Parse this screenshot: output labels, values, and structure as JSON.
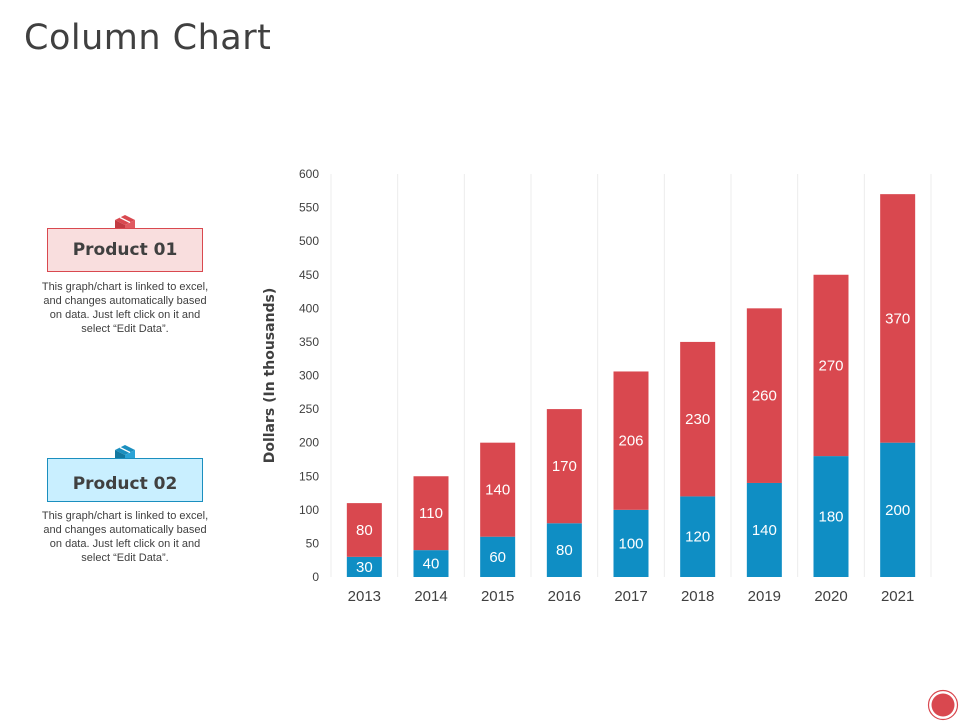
{
  "slide": {
    "title": "Column Chart"
  },
  "products": [
    {
      "label": "Product 01",
      "description_lines": [
        "This graph/chart is linked to excel,",
        "and changes automatically based",
        "on data. Just left click on it and",
        "select “Edit Data”."
      ],
      "color": "#d9484f",
      "icon": "box-icon"
    },
    {
      "label": "Product 02",
      "description_lines": [
        "This graph/chart is linked to excel,",
        "and changes automatically based",
        "on data. Just left click on it and",
        "select “Edit Data”."
      ],
      "color": "#1a8fbf",
      "icon": "box-icon"
    }
  ],
  "chart_data": {
    "type": "bar",
    "stacked": true,
    "title": "",
    "xlabel": "",
    "ylabel": "Dollars (In thousands)",
    "ylim": [
      0,
      600
    ],
    "yticks": [
      0,
      50,
      100,
      150,
      200,
      250,
      300,
      350,
      400,
      450,
      500,
      550,
      600
    ],
    "categories": [
      "2013",
      "2014",
      "2015",
      "2016",
      "2017",
      "2018",
      "2019",
      "2020",
      "2021"
    ],
    "series": [
      {
        "name": "Product 02",
        "color": "#0f8ec4",
        "values": [
          30,
          40,
          60,
          80,
          100,
          120,
          140,
          180,
          200
        ]
      },
      {
        "name": "Product 01",
        "color": "#d9484f",
        "values": [
          80,
          110,
          140,
          170,
          206,
          230,
          260,
          270,
          370
        ]
      }
    ],
    "grid": "vertical"
  },
  "nav": {
    "accent": "#d9484f"
  }
}
